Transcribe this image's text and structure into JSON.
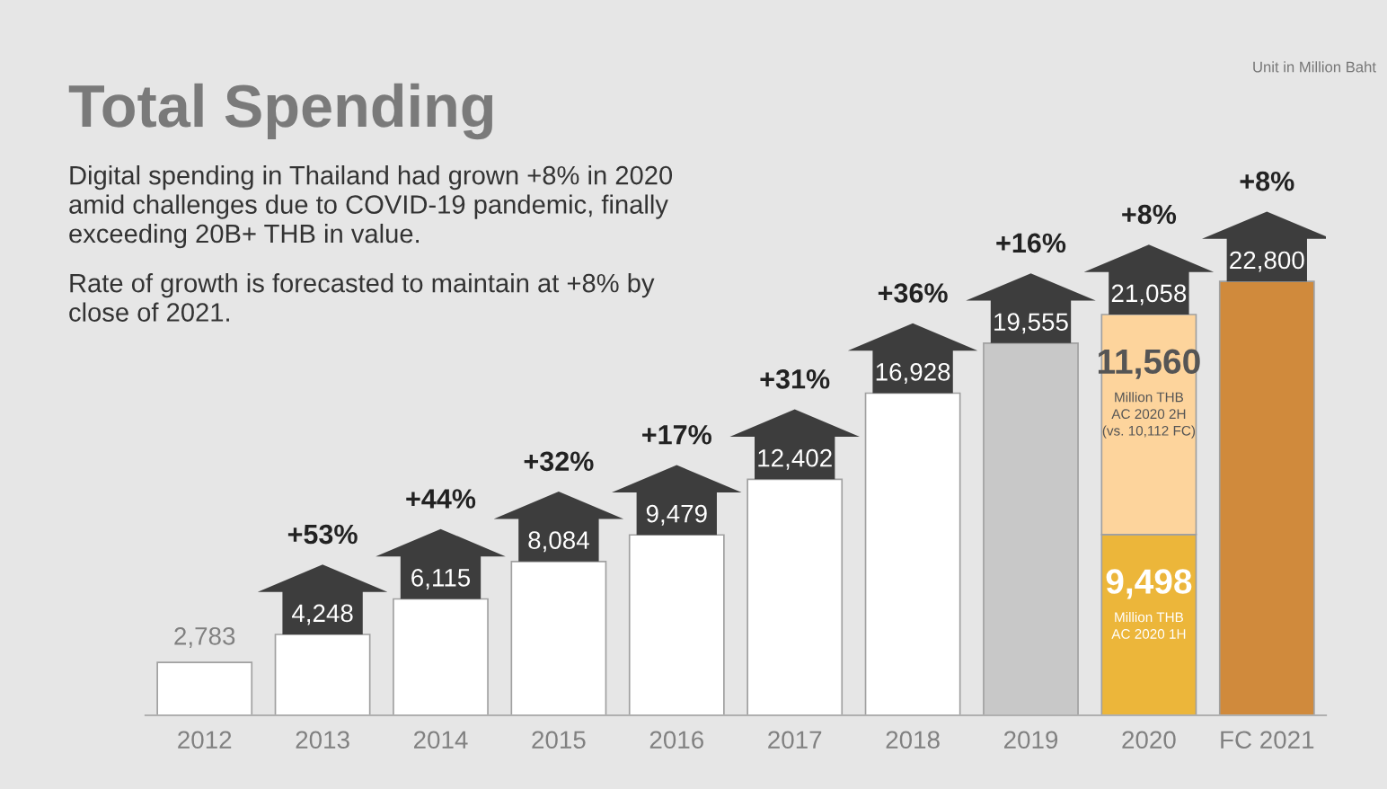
{
  "chart_data": {
    "type": "bar",
    "title": "Total Spending",
    "categories": [
      "2012",
      "2013",
      "2014",
      "2015",
      "2016",
      "2017",
      "2018",
      "2019",
      "2020",
      "FC 2021"
    ],
    "stacked": true,
    "series": [
      {
        "colors": [
          "#ffffff",
          "#ffffff",
          "#ffffff",
          "#ffffff",
          "#ffffff",
          "#ffffff",
          "#ffffff",
          "#c8c8c8",
          "#ecb63a",
          "#d08a3c"
        ],
        "values": [
          2783,
          4248,
          6115,
          8084,
          9479,
          12402,
          16928,
          19555,
          9498,
          22800
        ],
        "value_labels": [
          null,
          null,
          null,
          null,
          null,
          null,
          null,
          null,
          "9,498",
          null
        ]
      },
      {
        "colors": [
          null,
          null,
          null,
          null,
          null,
          null,
          null,
          null,
          "#fdd49c",
          null
        ],
        "values": [
          null,
          null,
          null,
          null,
          null,
          null,
          null,
          null,
          11560,
          null
        ],
        "value_labels": [
          null,
          null,
          null,
          null,
          null,
          null,
          null,
          null,
          "11,560",
          null
        ]
      }
    ],
    "totals": [
      "2,783",
      "4,248",
      "6,115",
      "8,084",
      "9,479",
      "12,402",
      "16,928",
      "19,555",
      "21,058",
      "22,800"
    ],
    "annotations": [
      "Digital spending in Thailand had grown +8% in 2020\namid challenges due to COVID-19 pandemic, finally\nexceeding 20B+ THB in value.",
      "Rate of growth is forecasted to maintain at +8% by\nclose of 2021.",
      "Unit in Million Baht",
      "Million THB\nAC 2020 1H",
      "Million THB\nAC 2020 2H\n(vs. 10,112 FC)",
      "+53%",
      "+44%",
      "+32%",
      "+17%",
      "+31%",
      "+36%",
      "+16%",
      "+8%",
      "+8%"
    ],
    "legend": false,
    "grid": false
  }
}
